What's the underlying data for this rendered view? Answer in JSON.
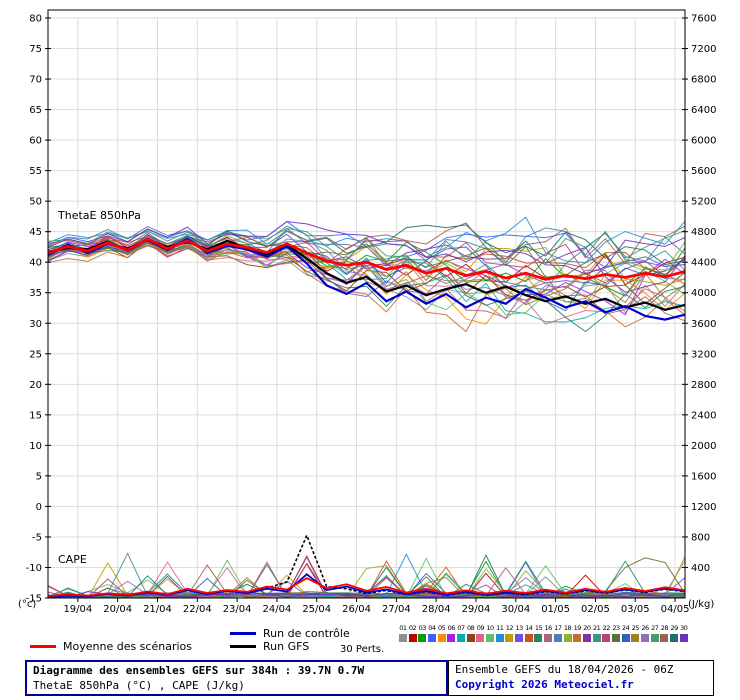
{
  "chart": {
    "left_unit": "(°c)",
    "right_unit": "(J/kg)",
    "left_ticks": [
      80,
      75,
      70,
      65,
      60,
      55,
      50,
      45,
      40,
      35,
      30,
      25,
      20,
      15,
      10,
      5,
      0,
      -5,
      -10,
      -15
    ],
    "right_ticks": [
      7600,
      7200,
      6800,
      6400,
      6000,
      5600,
      5200,
      4800,
      4400,
      4000,
      3600,
      3200,
      2800,
      2400,
      2000,
      1600,
      1200,
      800,
      400
    ],
    "x_tick_labels": [
      "19/04",
      "20/04",
      "21/04",
      "22/04",
      "23/04",
      "24/04",
      "25/04",
      "26/04",
      "27/04",
      "28/04",
      "29/04",
      "30/04",
      "01/05",
      "02/05",
      "03/05",
      "04/05"
    ],
    "inplot_thetae_label": "ThetaE 850hPa",
    "inplot_cape_label": "CAPE"
  },
  "chart_data": {
    "type": "line",
    "title": "Diagramme des ensembles GEFS sur 384h : 39.7N 0.7W",
    "subtitle": "ThetaE 850hPa (°C) , CAPE (J/kg)",
    "x_hours_step": 12,
    "x_hours_max": 384,
    "x_tick_hours_start": 18,
    "x_tick_hours_interval": 24,
    "ylim_left_degC": [
      -15,
      80
    ],
    "ylim_right_Jkg": [
      0,
      7600
    ],
    "right_Jkg_per_left_degC": 80,
    "grid": true,
    "series": {
      "mean_thetae": {
        "label": "Moyenne des scénarios",
        "color": "#ff0000",
        "kind": "thetae",
        "width": 2.8,
        "values": [
          41.5,
          42.6,
          41.8,
          43.2,
          42.0,
          43.8,
          42.2,
          43.5,
          41.8,
          43.0,
          42.4,
          41.6,
          43.0,
          41.5,
          40.2,
          39.5,
          40.0,
          38.8,
          39.5,
          38.2,
          39.0,
          37.8,
          38.5,
          37.4,
          38.2,
          37.2,
          37.8,
          37.3,
          38.0,
          37.5,
          38.2,
          37.6,
          38.5
        ]
      },
      "control_thetae": {
        "label": "Run de contrôle",
        "color": "#0000cc",
        "kind": "thetae",
        "width": 2.2,
        "values": [
          41.2,
          42.9,
          41.5,
          43.0,
          42.3,
          43.6,
          42.0,
          43.8,
          41.5,
          42.7,
          42.1,
          40.9,
          42.6,
          39.8,
          36.2,
          34.8,
          36.6,
          33.6,
          35.2,
          33.2,
          34.8,
          32.6,
          34.2,
          33.2,
          35.6,
          34.2,
          32.6,
          33.6,
          31.8,
          32.8,
          31.2,
          30.6,
          31.4
        ]
      },
      "gfs_thetae": {
        "label": "Run GFS",
        "color": "#000000",
        "kind": "thetae",
        "width": 2.2,
        "values": [
          41.7,
          42.3,
          42.1,
          43.4,
          41.9,
          43.7,
          42.5,
          43.3,
          42.1,
          43.5,
          42.3,
          41.3,
          42.9,
          40.6,
          38.2,
          36.6,
          37.6,
          35.2,
          36.2,
          34.6,
          35.6,
          36.4,
          35.0,
          36.0,
          34.6,
          33.6,
          34.4,
          33.2,
          34.0,
          32.6,
          33.4,
          32.2,
          33.0
        ]
      },
      "mean_cape": {
        "label": "Moyenne des scénarios (CAPE)",
        "color": "#ff0000",
        "kind": "cape",
        "width": 1.8,
        "values": [
          25,
          45,
          30,
          60,
          40,
          85,
          50,
          120,
          65,
          105,
          80,
          150,
          110,
          260,
          130,
          180,
          95,
          145,
          70,
          120,
          60,
          100,
          55,
          95,
          65,
          110,
          70,
          120,
          80,
          130,
          90,
          140,
          100
        ]
      },
      "control_cape": {
        "label": "Run de contrôle (CAPE)",
        "color": "#0000cc",
        "kind": "cape",
        "width": 1.8,
        "values": [
          12,
          32,
          22,
          52,
          32,
          72,
          42,
          102,
          52,
          92,
          62,
          122,
          85,
          310,
          105,
          150,
          72,
          112,
          52,
          92,
          42,
          82,
          42,
          72,
          52,
          92,
          62,
          102,
          72,
          112,
          82,
          122,
          92
        ]
      },
      "gfs_cape": {
        "label": "Run GFS (CAPE)",
        "color": "#000000",
        "kind": "cape",
        "width": 1.6,
        "dash": "3,2",
        "values": [
          15,
          35,
          25,
          55,
          35,
          75,
          45,
          110,
          55,
          95,
          65,
          130,
          210,
          820,
          150,
          120,
          60,
          100,
          45,
          85,
          35,
          75,
          35,
          65,
          45,
          85,
          55,
          95,
          65,
          105,
          75,
          115,
          85
        ]
      }
    },
    "ensemble": {
      "count": 30,
      "seed": 1337,
      "divergence_start_hour": 96,
      "max_spread_degC": 8,
      "max_member_cape_Jkg": 610,
      "clamp_degC": [
        19.5,
        50.5
      ],
      "colors": [
        "#909090",
        "#c00000",
        "#00a000",
        "#4060ff",
        "#ff8c00",
        "#a020f0",
        "#00b0b0",
        "#8b4513",
        "#e06090",
        "#60c060",
        "#2090d0",
        "#c0a000",
        "#7050e0",
        "#d05020",
        "#308060",
        "#b06080",
        "#5080b0",
        "#90b030",
        "#c07030",
        "#8030a0",
        "#409090",
        "#c04070",
        "#607030",
        "#3060c0",
        "#a08020",
        "#9070c0",
        "#40a070",
        "#a06050",
        "#207070",
        "#7030c0"
      ]
    }
  },
  "legend": {
    "mean_label": "Moyenne des scénarios",
    "control_label": "Run de contrôle",
    "gfs_label": "Run GFS",
    "perts_label": "30 Perts.",
    "pert_numbers": [
      "01",
      "02",
      "03",
      "04",
      "05",
      "06",
      "07",
      "08",
      "09",
      "10",
      "11",
      "12",
      "13",
      "14",
      "15",
      "16",
      "17",
      "18",
      "19",
      "20",
      "21",
      "22",
      "23",
      "24",
      "25",
      "26",
      "27",
      "28",
      "29",
      "30"
    ]
  },
  "footer": {
    "title": "Diagramme des ensembles GEFS sur 384h : 39.7N 0.7W",
    "subtitle": "ThetaE 850hPa (°C) , CAPE (J/kg)",
    "run_info": "Ensemble GEFS du 18/04/2026 - 06Z",
    "copyright": "Copyright 2026 Meteociel.fr"
  }
}
